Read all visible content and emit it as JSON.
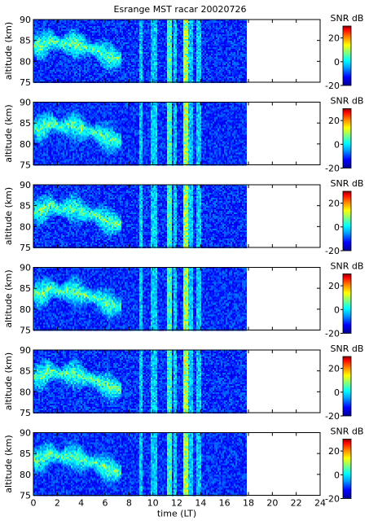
{
  "figure": {
    "title": "Esrange MST racar 20020726"
  },
  "chart_data": [
    {
      "type": "heatmap",
      "title": "Esrange MST racar 20020726",
      "xlabel": "",
      "ylabel": "altitude (km)",
      "xlim": [
        0,
        24
      ],
      "ylim": [
        75,
        90
      ],
      "x_ticks": [
        0,
        2,
        4,
        6,
        8,
        10,
        12,
        14,
        16,
        18,
        20,
        22,
        24
      ],
      "y_ticks": [
        75,
        80,
        85,
        90
      ],
      "data_end_time": 17.8,
      "colorbar": {
        "label": "SNR dB",
        "range": [
          -20,
          30
        ],
        "ticks": [
          -20,
          0,
          20
        ]
      },
      "colormap": [
        "#00008f",
        "#0000ff",
        "#00a0ff",
        "#00ffff",
        "#80ff80",
        "#ffff00",
        "#ff8000",
        "#ff0000",
        "#800000"
      ],
      "echo_layer": {
        "time_range": [
          0,
          7.3
        ],
        "altitude_crests": [
          [
            0.6,
            85.0
          ],
          [
            1.4,
            86.5
          ],
          [
            2.2,
            85.5
          ],
          [
            3.2,
            85.8
          ],
          [
            4.2,
            84.8
          ],
          [
            5.2,
            84.0
          ],
          [
            6.2,
            82.5
          ],
          [
            7.0,
            82.0
          ]
        ]
      },
      "interference_lines_time": [
        8.9,
        9.9,
        10.2,
        11.3,
        11.4,
        11.8,
        12.6,
        12.7,
        13.1,
        13.7,
        13.8
      ]
    },
    {
      "type": "heatmap",
      "xlabel": "",
      "ylabel": "altitude (km)",
      "xlim": [
        0,
        24
      ],
      "ylim": [
        75,
        90
      ],
      "x_ticks": [
        0,
        2,
        4,
        6,
        8,
        10,
        12,
        14,
        16,
        18,
        20,
        22,
        24
      ],
      "y_ticks": [
        75,
        80,
        85,
        90
      ],
      "data_end_time": 17.8,
      "colorbar": {
        "label": "SNR dB",
        "range": [
          -20,
          30
        ],
        "ticks": [
          -20,
          0,
          20
        ]
      },
      "interference_lines_time": [
        8.9,
        9.9,
        10.2,
        11.3,
        11.4,
        11.8,
        12.6,
        12.7,
        13.1,
        13.7,
        13.8
      ]
    },
    {
      "type": "heatmap",
      "xlabel": "",
      "ylabel": "altitude (km)",
      "xlim": [
        0,
        24
      ],
      "ylim": [
        75,
        90
      ],
      "x_ticks": [
        0,
        2,
        4,
        6,
        8,
        10,
        12,
        14,
        16,
        18,
        20,
        22,
        24
      ],
      "y_ticks": [
        75,
        80,
        85,
        90
      ],
      "data_end_time": 17.8,
      "colorbar": {
        "label": "SNR dB",
        "range": [
          -20,
          30
        ],
        "ticks": [
          -20,
          0,
          20
        ]
      },
      "interference_lines_time": [
        8.9,
        9.9,
        10.2,
        11.3,
        11.4,
        11.8,
        12.6,
        12.7,
        13.1,
        13.7,
        13.8
      ]
    },
    {
      "type": "heatmap",
      "xlabel": "",
      "ylabel": "altitude (km)",
      "xlim": [
        0,
        24
      ],
      "ylim": [
        75,
        90
      ],
      "x_ticks": [
        0,
        2,
        4,
        6,
        8,
        10,
        12,
        14,
        16,
        18,
        20,
        22,
        24
      ],
      "y_ticks": [
        75,
        80,
        85,
        90
      ],
      "data_end_time": 17.8,
      "colorbar": {
        "label": "SNR dB",
        "range": [
          -20,
          30
        ],
        "ticks": [
          -20,
          0,
          20
        ]
      },
      "interference_lines_time": [
        8.9,
        9.9,
        10.2,
        11.3,
        11.4,
        11.8,
        12.6,
        12.7,
        13.1,
        13.7,
        13.8
      ]
    },
    {
      "type": "heatmap",
      "xlabel": "",
      "ylabel": "altitude (km)",
      "xlim": [
        0,
        24
      ],
      "ylim": [
        75,
        90
      ],
      "x_ticks": [
        0,
        2,
        4,
        6,
        8,
        10,
        12,
        14,
        16,
        18,
        20,
        22,
        24
      ],
      "y_ticks": [
        75,
        80,
        85,
        90
      ],
      "data_end_time": 17.8,
      "colorbar": {
        "label": "SNR dB",
        "range": [
          -20,
          30
        ],
        "ticks": [
          -20,
          0,
          20
        ]
      },
      "interference_lines_time": [
        8.9,
        9.9,
        10.2,
        11.3,
        11.4,
        11.8,
        12.6,
        12.7,
        13.1,
        13.7,
        13.8
      ]
    },
    {
      "type": "heatmap",
      "xlabel": "time (LT)",
      "ylabel": "altitude (km)",
      "xlim": [
        0,
        24
      ],
      "ylim": [
        75,
        90
      ],
      "x_ticks": [
        0,
        2,
        4,
        6,
        8,
        10,
        12,
        14,
        16,
        18,
        20,
        22,
        24
      ],
      "y_ticks": [
        75,
        80,
        85,
        90
      ],
      "data_end_time": 17.8,
      "colorbar": {
        "label": "SNR dB",
        "range": [
          -20,
          30
        ],
        "ticks": [
          -20,
          0,
          20
        ]
      },
      "interference_lines_time": [
        8.9,
        9.9,
        10.2,
        11.3,
        11.4,
        11.8,
        12.6,
        12.7,
        13.1,
        13.7,
        13.8
      ]
    }
  ]
}
